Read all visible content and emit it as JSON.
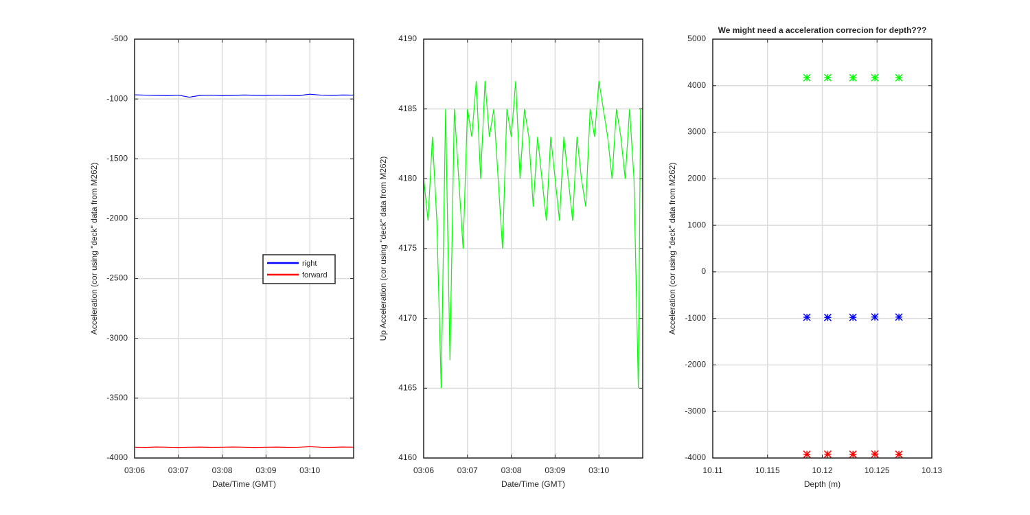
{
  "chart_data": [
    {
      "type": "line",
      "xlabel": "Date/Time (GMT)",
      "ylabel": "Acceleration (cor using \"deck\" data from M262)",
      "x": [
        186,
        186.25,
        186.5,
        186.75,
        187,
        187.25,
        187.5,
        187.75,
        188,
        188.25,
        188.5,
        188.75,
        189,
        189.25,
        189.5,
        189.75,
        190,
        190.25,
        190.5,
        190.75,
        191
      ],
      "series": [
        {
          "name": "right",
          "color": "#0000ff",
          "values": [
            -965,
            -968,
            -970,
            -972,
            -968,
            -985,
            -970,
            -968,
            -972,
            -970,
            -967,
            -969,
            -970,
            -968,
            -970,
            -972,
            -960,
            -968,
            -970,
            -967,
            -968
          ]
        },
        {
          "name": "forward",
          "color": "#ff0000",
          "values": [
            -3910,
            -3912,
            -3908,
            -3910,
            -3912,
            -3910,
            -3909,
            -3911,
            -3910,
            -3908,
            -3910,
            -3912,
            -3910,
            -3909,
            -3911,
            -3910,
            -3905,
            -3910,
            -3911,
            -3908,
            -3910
          ]
        }
      ],
      "xlim": [
        186,
        191
      ],
      "xticks": [
        {
          "value": 186,
          "label": "03:06"
        },
        {
          "value": 187,
          "label": "03:07"
        },
        {
          "value": 188,
          "label": "03:08"
        },
        {
          "value": 189,
          "label": "03:09"
        },
        {
          "value": 190,
          "label": "03:10"
        }
      ],
      "ylim": [
        -4000,
        -500
      ],
      "yticks": [
        -4000,
        -3500,
        -3000,
        -2500,
        -2000,
        -1500,
        -1000,
        -500
      ],
      "grid": true,
      "legend": "east"
    },
    {
      "type": "line",
      "xlabel": "Date/Time (GMT)",
      "ylabel": "Up Acceleration (cor using \"deck\" data from M262)",
      "x": [
        186,
        186.1,
        186.2,
        186.3,
        186.4,
        186.5,
        186.6,
        186.7,
        186.8,
        186.9,
        187,
        187.1,
        187.2,
        187.3,
        187.4,
        187.5,
        187.6,
        187.7,
        187.8,
        187.9,
        188,
        188.1,
        188.2,
        188.3,
        188.4,
        188.5,
        188.6,
        188.7,
        188.8,
        188.9,
        189,
        189.1,
        189.2,
        189.3,
        189.4,
        189.5,
        189.6,
        189.7,
        189.8,
        189.9,
        190,
        190.1,
        190.2,
        190.3,
        190.4,
        190.5,
        190.6,
        190.7,
        190.8,
        190.9,
        190.95
      ],
      "values": [
        4180,
        4177,
        4183,
        4177,
        4165,
        4185,
        4167,
        4185,
        4180,
        4175,
        4185,
        4183,
        4187,
        4180,
        4187,
        4183,
        4185,
        4180,
        4175,
        4185,
        4183,
        4187,
        4180,
        4185,
        4183,
        4178,
        4183,
        4180,
        4177,
        4183,
        4180,
        4177,
        4183,
        4180,
        4177,
        4183,
        4180,
        4178,
        4185,
        4183,
        4187,
        4185,
        4183,
        4180,
        4185,
        4183,
        4180,
        4185,
        4180,
        4165,
        4185
      ],
      "color": "#00ff00",
      "xlim": [
        186,
        191
      ],
      "xticks": [
        {
          "value": 186,
          "label": "03:06"
        },
        {
          "value": 187,
          "label": "03:07"
        },
        {
          "value": 188,
          "label": "03:08"
        },
        {
          "value": 189,
          "label": "03:09"
        },
        {
          "value": 190,
          "label": "03:10"
        }
      ],
      "ylim": [
        4160,
        4190
      ],
      "yticks": [
        4160,
        4165,
        4170,
        4175,
        4180,
        4185,
        4190
      ],
      "grid": true
    },
    {
      "type": "scatter",
      "title": "We might need a acceleration correcion for depth???",
      "xlabel": "Depth (m)",
      "ylabel": "Acceleration (cor using \"deck\" data from M262)",
      "series": [
        {
          "color": "#00ff00",
          "x": [
            10.1186,
            10.1205,
            10.1228,
            10.1248,
            10.127
          ],
          "values": [
            4170,
            4172,
            4170,
            4171,
            4170
          ]
        },
        {
          "color": "#0000ff",
          "x": [
            10.1186,
            10.1205,
            10.1228,
            10.1248,
            10.127
          ],
          "values": [
            -975,
            -980,
            -978,
            -970,
            -972
          ]
        },
        {
          "color": "#ff0000",
          "x": [
            10.1186,
            10.1205,
            10.1228,
            10.1248,
            10.127
          ],
          "values": [
            -3920,
            -3918,
            -3920,
            -3915,
            -3920
          ]
        }
      ],
      "xlim": [
        10.11,
        10.13
      ],
      "xticks": [
        10.11,
        10.115,
        10.12,
        10.125,
        10.13
      ],
      "ylim": [
        -4000,
        5000
      ],
      "yticks": [
        -4000,
        -3000,
        -2000,
        -1000,
        0,
        1000,
        2000,
        3000,
        4000,
        5000
      ],
      "grid": true
    }
  ]
}
